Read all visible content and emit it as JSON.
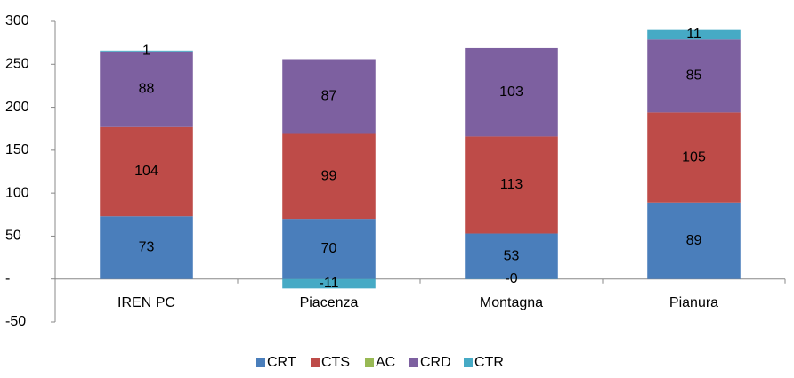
{
  "chart_data": {
    "type": "bar",
    "stacked": true,
    "categories": [
      "IREN PC",
      "Piacenza",
      "Montagna",
      "Pianura"
    ],
    "series": [
      {
        "name": "CRT",
        "color": "#4a7ebb",
        "values": [
          73,
          70,
          53,
          89
        ],
        "value_labels": [
          "73",
          "70",
          "53",
          "89"
        ]
      },
      {
        "name": "CTS",
        "color": "#be4b48",
        "values": [
          104,
          99,
          113,
          105
        ],
        "value_labels": [
          "104",
          "99",
          "113",
          "105"
        ]
      },
      {
        "name": "AC",
        "color": "#98b954",
        "values": [
          0,
          0,
          0,
          0
        ]
      },
      {
        "name": "CRD",
        "color": "#7d60a0",
        "values": [
          88,
          87,
          103,
          85
        ],
        "value_labels": [
          "88",
          "87",
          "103",
          "85"
        ]
      },
      {
        "name": "CTR",
        "color": "#46aac5",
        "values": [
          1,
          -11,
          -0.2,
          11
        ],
        "value_labels": [
          "1",
          "-11",
          "-0",
          "11"
        ]
      }
    ],
    "ylim": [
      -50,
      300
    ],
    "yticks": [
      -50,
      {
        "value": 0,
        "label": "-"
      },
      50,
      100,
      150,
      200,
      250,
      300
    ],
    "grid": false,
    "legend": "bottom"
  }
}
